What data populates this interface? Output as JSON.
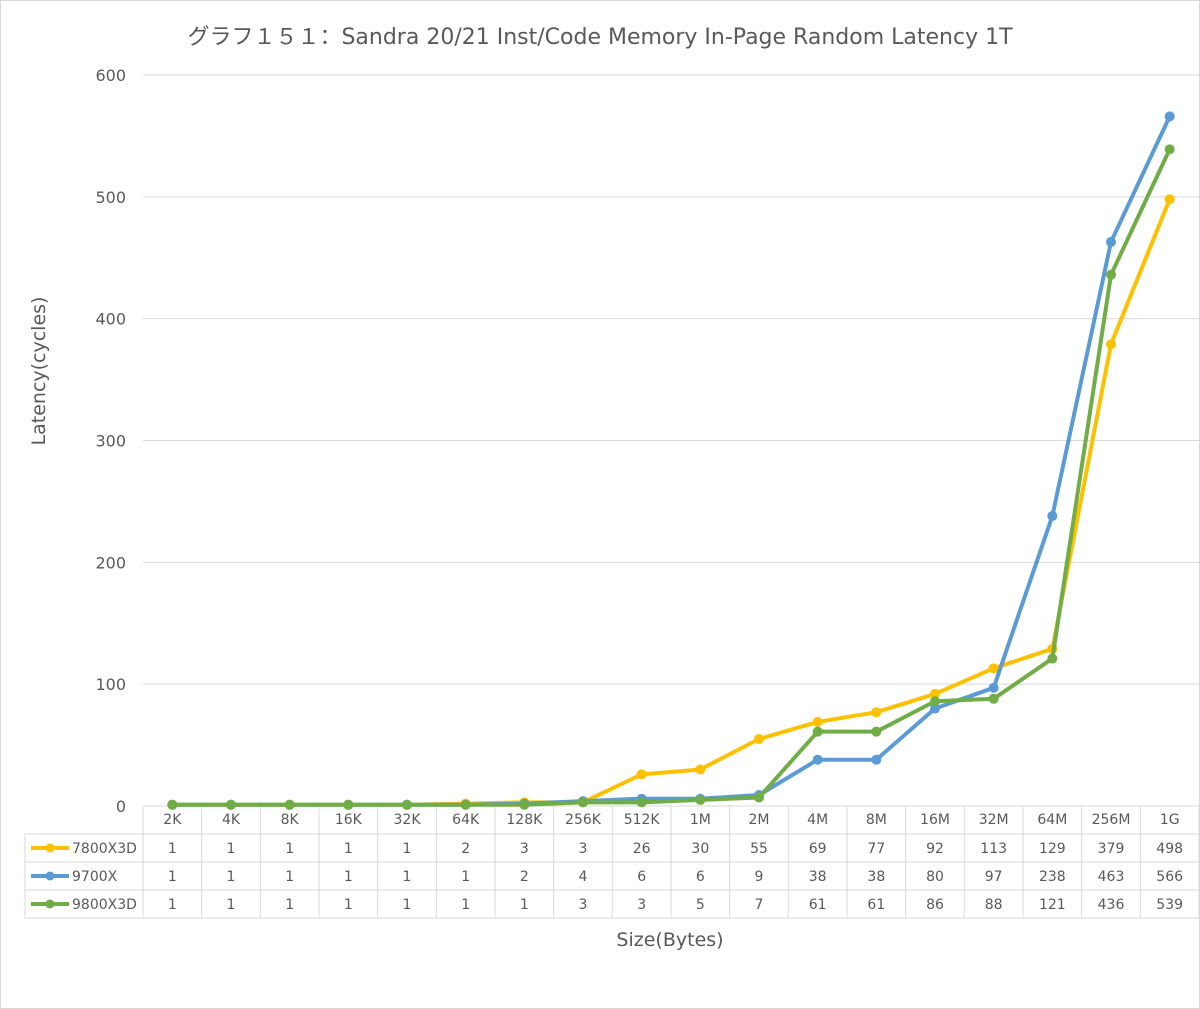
{
  "chart_data": {
    "type": "line",
    "title": "グラフ１５１：Sandra 20/21 Inst/Code Memory In-Page Random Latency 1T",
    "xlabel": "Size(Bytes)",
    "ylabel": "Latency(cycles)",
    "ylim": [
      0,
      600
    ],
    "yticks": [
      "0",
      "100",
      "200",
      "300",
      "400",
      "500",
      "600"
    ],
    "grid": true,
    "legend": "data-table",
    "categories": [
      "2K",
      "4K",
      "8K",
      "16K",
      "32K",
      "64K",
      "128K",
      "256K",
      "512K",
      "1M",
      "2M",
      "4M",
      "8M",
      "16M",
      "32M",
      "64M",
      "256M",
      "1G"
    ],
    "series": [
      {
        "name": "7800X3D",
        "color": "#ffc000",
        "values": [
          1,
          1,
          1,
          1,
          1,
          2,
          3,
          3,
          26,
          30,
          55,
          69,
          77,
          92,
          113,
          129,
          379,
          498
        ]
      },
      {
        "name": "9700X",
        "color": "#5b9bd5",
        "values": [
          1,
          1,
          1,
          1,
          1,
          1,
          2,
          4,
          6,
          6,
          9,
          38,
          38,
          80,
          97,
          238,
          463,
          566
        ]
      },
      {
        "name": "9800X3D",
        "color": "#70ad47",
        "values": [
          1,
          1,
          1,
          1,
          1,
          1,
          1,
          3,
          3,
          5,
          7,
          61,
          61,
          86,
          88,
          121,
          436,
          539
        ]
      }
    ]
  }
}
